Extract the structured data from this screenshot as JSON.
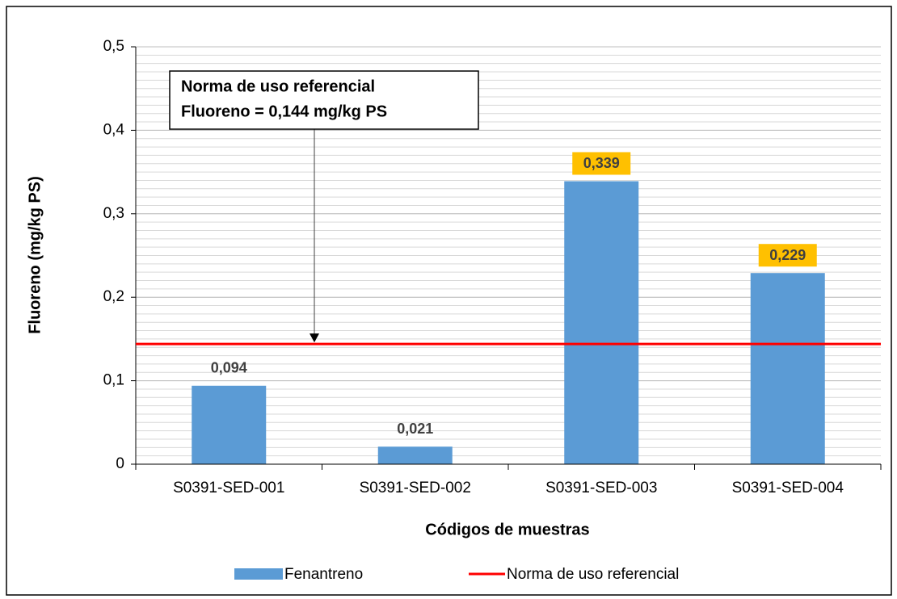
{
  "chart_data": {
    "type": "bar",
    "xlabel": "Códigos de muestras",
    "ylabel": "Fluoreno (mg/kg PS)",
    "categories": [
      "S0391-SED-001",
      "S0391-SED-002",
      "S0391-SED-003",
      "S0391-SED-004"
    ],
    "series": [
      {
        "name": "Fenantreno",
        "color": "#5b9bd5",
        "values": [
          0.094,
          0.021,
          0.339,
          0.229
        ],
        "value_labels": [
          "0,094",
          "0,021",
          "0,339",
          "0,229"
        ]
      }
    ],
    "reference": {
      "name": "Norma de uso referencial",
      "value": 0.144,
      "color": "#ff0000"
    },
    "annotation": [
      "Norma de uso referencial",
      "Fluoreno = 0,144 mg/kg PS"
    ],
    "highlight_color": "#ffc000",
    "ylim": [
      0,
      0.5
    ],
    "yticks": [
      0,
      {
        "value": 0.1,
        "label": "0,1"
      },
      {
        "value": 0.2,
        "label": "0,2"
      },
      {
        "value": 0.3,
        "label": "0,3"
      },
      {
        "value": 0.4,
        "label": "0,4"
      },
      {
        "value": 0.5,
        "label": "0,5"
      }
    ],
    "yminor": 0.01,
    "grid": true,
    "legend": "bottom"
  }
}
